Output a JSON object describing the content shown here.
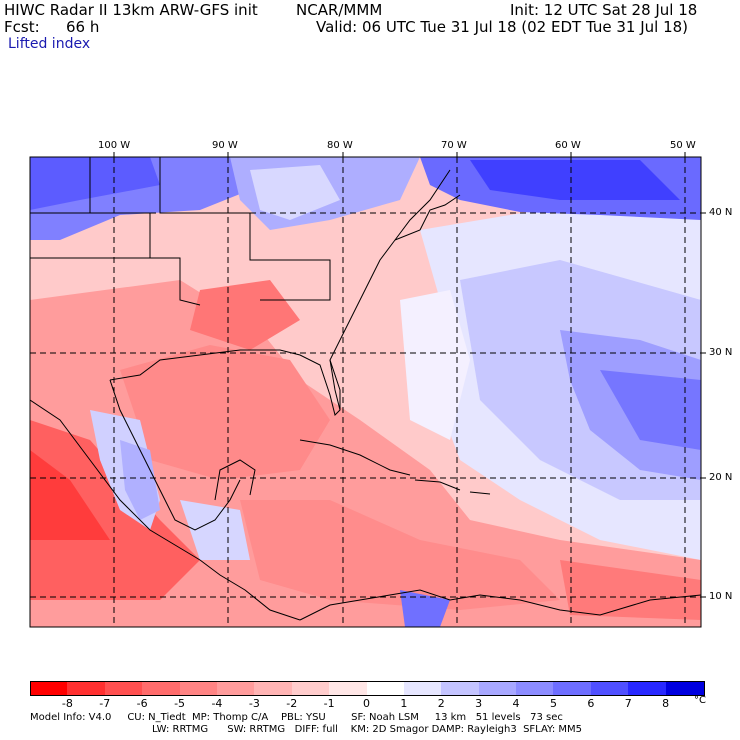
{
  "header": {
    "model_title": "HIWC Radar II 13km ARW-GFS init",
    "org": "NCAR/MMM",
    "init": "Init: 12 UTC Sat 28 Jul 18",
    "fcst_label": "Fcst:",
    "fcst_value": "66 h",
    "valid": "Valid: 06 UTC Tue 31 Jul 18 (02 EDT Tue 31 Jul 18)",
    "field": "Lifted index"
  },
  "map": {
    "lon_labels": [
      "100 W",
      "90 W",
      "80 W",
      "70 W",
      "60 W",
      "50 W"
    ],
    "lat_labels": [
      "40 N",
      "30 N",
      "20 N",
      "10 N"
    ]
  },
  "colorbar": {
    "labels": [
      "-8",
      "-7",
      "-6",
      "-5",
      "-4",
      "-3",
      "-2",
      "-1",
      "0",
      "1",
      "2",
      "3",
      "4",
      "5",
      "6",
      "7",
      "8"
    ],
    "unit": "°C",
    "colors": [
      "#ff0000",
      "#ff3030",
      "#ff5050",
      "#ff6c6c",
      "#ff8484",
      "#ff9c9c",
      "#ffb4b4",
      "#ffcccc",
      "#ffe6e6",
      "#ffffff",
      "#e6e6ff",
      "#c4c4ff",
      "#a8a8ff",
      "#8c8cff",
      "#6e6eff",
      "#5050ff",
      "#2828ff",
      "#0000e0"
    ]
  },
  "footer": {
    "line1": "Model Info: V4.0     CU: N_Tiedt  MP: Thomp C/A    PBL: YSU        SF: Noah LSM     13 km   51 levels   73 sec",
    "line2": "LW: RRTMG      SW: RRTMG   DIFF: full    KM: 2D Smagor DAMP: Rayleigh3  SFLAY: MM5"
  }
}
